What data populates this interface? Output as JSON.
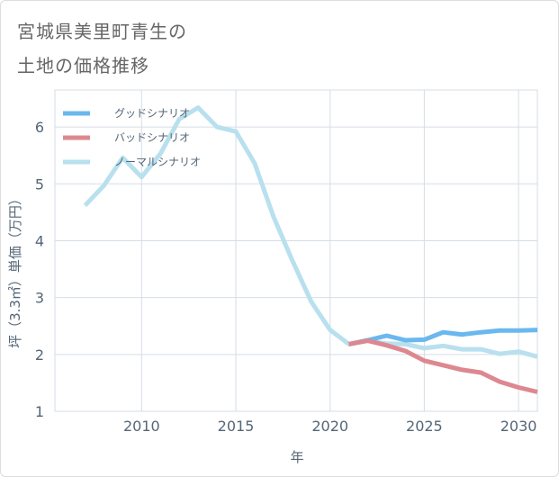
{
  "title": {
    "line1": "宮城県美里町青生の",
    "line2": "土地の価格推移"
  },
  "colors": {
    "good": "#6ab8ee",
    "bad": "#dd8890",
    "normal": "#b8e0ee",
    "grid": "#d5dde5",
    "axis_text": "#556677"
  },
  "chart_data": {
    "type": "line",
    "xlabel": "年",
    "ylabel": "坪（3.3㎡）単価（万円）",
    "xlim": [
      2005.4,
      2031
    ],
    "ylim": [
      1,
      6.65
    ],
    "xticks": [
      2010,
      2015,
      2020,
      2025,
      2030
    ],
    "yticks": [
      1,
      2,
      3,
      4,
      5,
      6
    ],
    "xtick_labels": [
      "2010",
      "2015",
      "2020",
      "2025",
      "2030"
    ],
    "ytick_labels": [
      "1",
      "2",
      "3",
      "4",
      "5",
      "6"
    ],
    "grid": true,
    "legend_position": "top-left",
    "series": [
      {
        "name": "グッドシナリオ",
        "color_key": "good",
        "x": [
          2021,
          2022,
          2023,
          2024,
          2025,
          2026,
          2027,
          2028,
          2029,
          2030,
          2031
        ],
        "y": [
          2.18,
          2.25,
          2.33,
          2.25,
          2.26,
          2.39,
          2.35,
          2.39,
          2.42,
          2.42,
          2.43
        ]
      },
      {
        "name": "バッドシナリオ",
        "color_key": "bad",
        "x": [
          2021,
          2022,
          2023,
          2024,
          2025,
          2026,
          2027,
          2028,
          2029,
          2030,
          2031
        ],
        "y": [
          2.18,
          2.24,
          2.16,
          2.06,
          1.89,
          1.81,
          1.73,
          1.68,
          1.52,
          1.42,
          1.34
        ]
      },
      {
        "name": "ノーマルシナリオ",
        "color_key": "normal",
        "x": [
          2007,
          2008,
          2009,
          2010,
          2011,
          2012,
          2013,
          2014,
          2015,
          2016,
          2017,
          2018,
          2019,
          2020,
          2021,
          2022,
          2023,
          2024,
          2025,
          2026,
          2027,
          2028,
          2029,
          2030,
          2031
        ],
        "y": [
          4.62,
          4.97,
          5.46,
          5.12,
          5.53,
          6.14,
          6.34,
          6.0,
          5.92,
          5.36,
          4.42,
          3.65,
          2.93,
          2.43,
          2.18,
          2.24,
          2.19,
          2.18,
          2.11,
          2.15,
          2.09,
          2.09,
          2.01,
          2.05,
          1.96
        ]
      }
    ]
  }
}
